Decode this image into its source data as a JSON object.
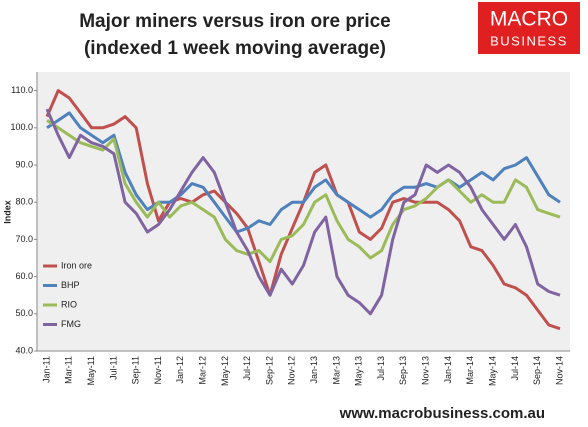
{
  "chart_data": {
    "type": "line",
    "title": "Major miners versus iron ore price",
    "subtitle": "(indexed 1 week moving average)",
    "y_label": "Index",
    "logo": [
      "MACRO",
      "BUSINESS"
    ],
    "footer": "www.macrobusiness.com.au",
    "categories": [
      "Jan-11",
      null,
      "Mar-11",
      null,
      "May-11",
      null,
      "Jul-11",
      null,
      "Sep-11",
      null,
      "Nov-11",
      null,
      "Jan-12",
      null,
      "Mar-12",
      null,
      "May-12",
      null,
      "Jul-12",
      null,
      "Sep-12",
      null,
      "Nov-12",
      null,
      "Jan-13",
      null,
      "Mar-13",
      null,
      "May-13",
      null,
      "Jul-13",
      null,
      "Sep-13",
      null,
      "Nov-13",
      null,
      "Jan-14",
      null,
      "Mar-14",
      null,
      "May-14",
      null,
      "Jul-14",
      null,
      "Sep-14",
      null,
      "Nov-14"
    ],
    "series": [
      {
        "name": "Iron ore",
        "color": "#c0504d",
        "values": [
          103,
          110,
          108,
          104,
          100,
          100,
          101,
          103,
          100,
          85,
          75,
          80,
          81,
          80,
          82,
          83,
          80,
          77,
          73,
          64,
          55,
          66,
          73,
          80,
          88,
          90,
          82,
          80,
          72,
          70,
          73,
          80,
          81,
          80,
          80,
          80,
          78,
          75,
          68,
          67,
          63,
          58,
          57,
          55,
          51,
          47,
          46
        ]
      },
      {
        "name": "BHP",
        "color": "#4f81bd",
        "values": [
          100,
          102,
          104,
          100,
          98,
          96,
          98,
          88,
          82,
          78,
          80,
          80,
          82,
          85,
          84,
          80,
          76,
          72,
          73,
          75,
          74,
          78,
          80,
          80,
          84,
          86,
          82,
          80,
          78,
          76,
          78,
          82,
          84,
          84,
          85,
          84,
          86,
          84,
          86,
          88,
          86,
          89,
          90,
          92,
          87,
          82,
          80
        ]
      },
      {
        "name": "RIO",
        "color": "#9bbb59",
        "values": [
          102,
          100,
          98,
          96,
          95,
          94,
          97,
          85,
          80,
          76,
          80,
          76,
          79,
          80,
          78,
          76,
          70,
          67,
          66,
          67,
          64,
          70,
          71,
          74,
          80,
          82,
          75,
          70,
          68,
          65,
          67,
          74,
          78,
          79,
          81,
          84,
          86,
          83,
          80,
          82,
          80,
          80,
          86,
          84,
          78,
          77,
          76
        ]
      },
      {
        "name": "FMG",
        "color": "#8064a2",
        "values": [
          105,
          98,
          92,
          98,
          96,
          95,
          93,
          80,
          77,
          72,
          74,
          78,
          83,
          88,
          92,
          88,
          80,
          72,
          67,
          60,
          55,
          62,
          58,
          63,
          72,
          76,
          60,
          55,
          53,
          50,
          55,
          70,
          80,
          82,
          90,
          88,
          90,
          88,
          84,
          78,
          74,
          70,
          74,
          68,
          58,
          56,
          55
        ]
      }
    ],
    "ylim": [
      40,
      115
    ],
    "yticks": [
      {
        "value": 40,
        "label": "40.0"
      },
      {
        "value": 50,
        "label": "50.0"
      },
      {
        "value": 60,
        "label": "60.0"
      },
      {
        "value": 70,
        "label": "70.0"
      },
      {
        "value": 80,
        "label": "80.0"
      },
      {
        "value": 90,
        "label": "90.0"
      },
      {
        "value": 100,
        "label": "100.0"
      },
      {
        "value": 110,
        "label": "110.0"
      }
    ],
    "grid": false,
    "legend": "lower left",
    "plot_background": "#efefef"
  }
}
